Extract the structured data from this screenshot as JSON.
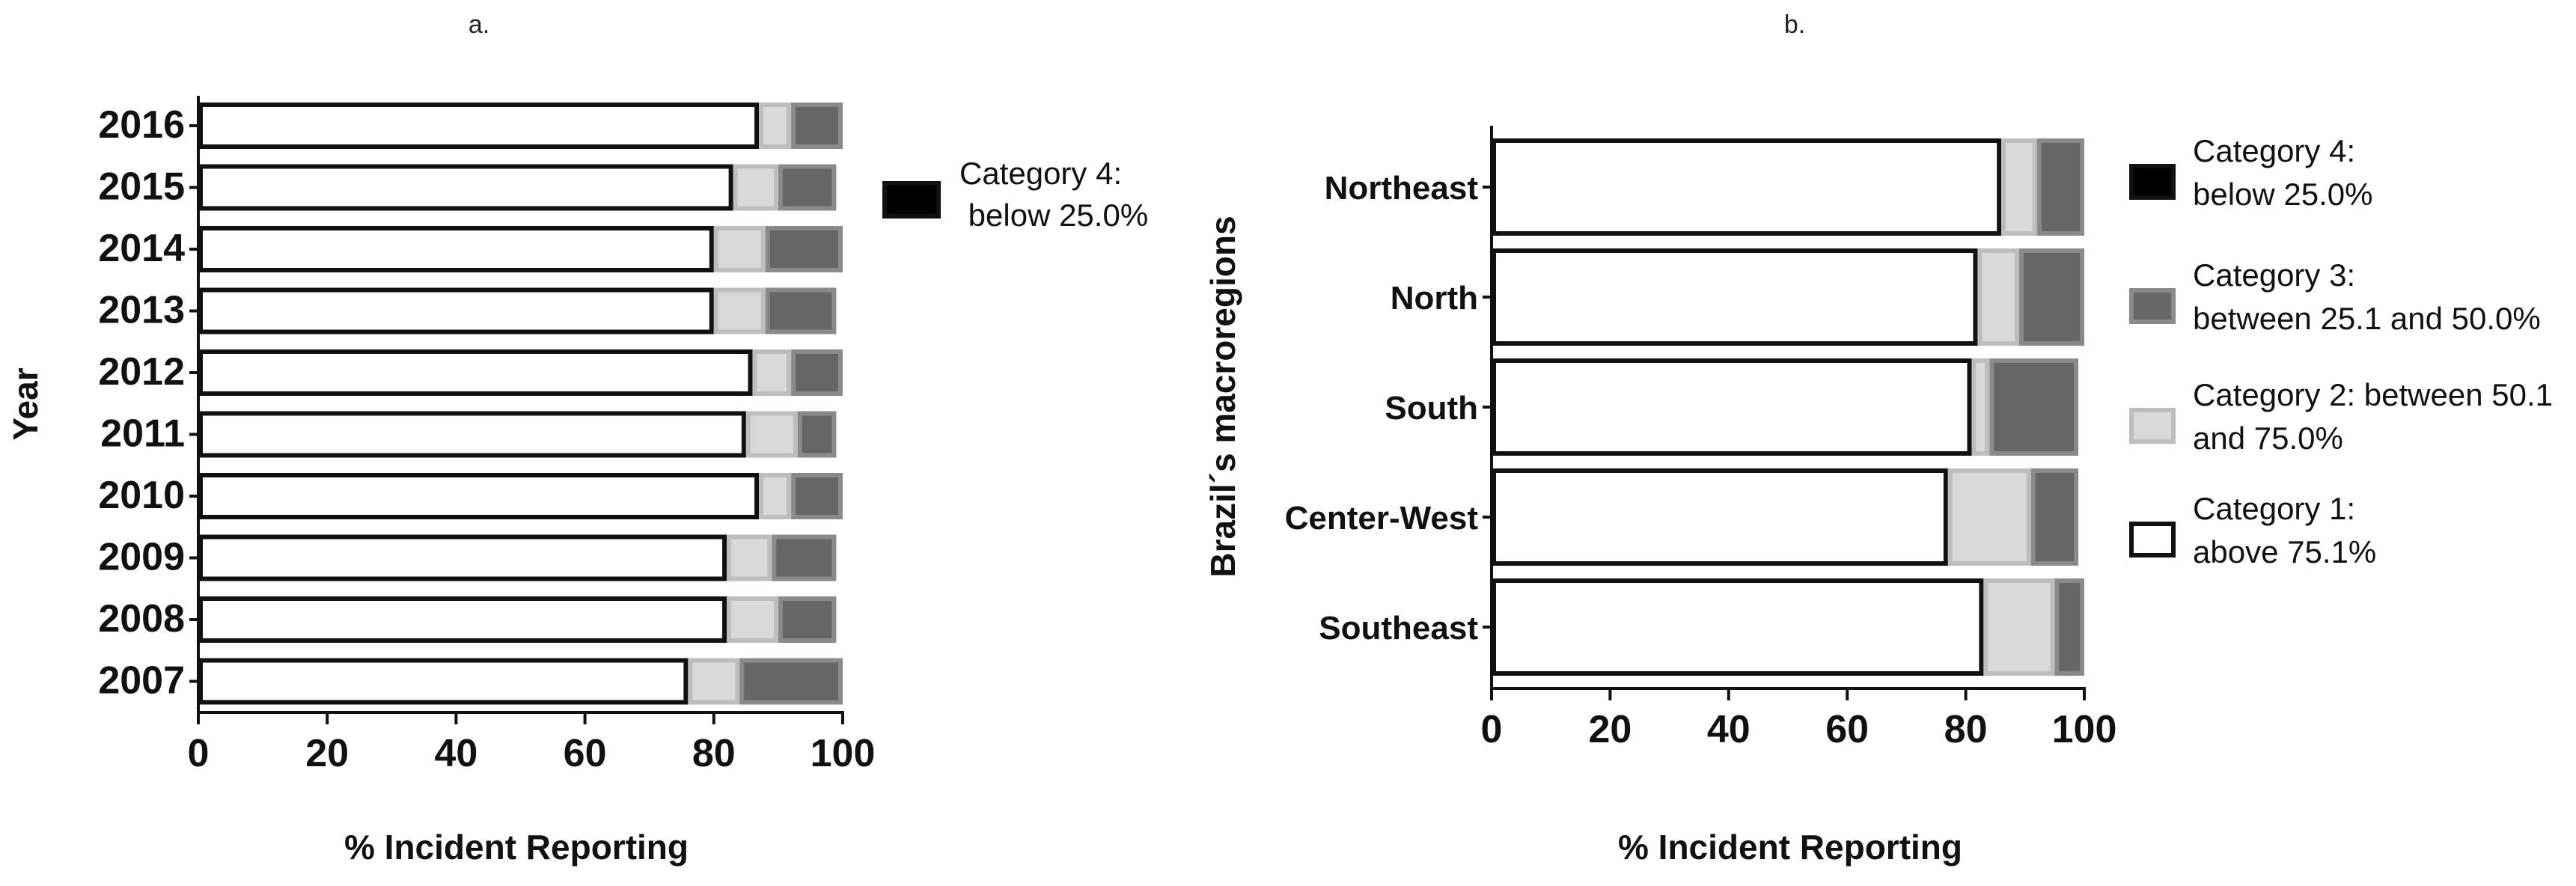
{
  "colors": {
    "category_1": "#ffffff",
    "category_2": "#d9d9d9",
    "category_3": "#666666",
    "category_4": "#000000",
    "outline": "#111111",
    "axis": "#111111"
  },
  "legend_b": {
    "items": [
      {
        "key": "category_4",
        "lines": [
          "Category 4:",
          " below 25.0%"
        ]
      },
      {
        "key": "category_3",
        "lines": [
          "Category 3:",
          " between 25.1 and 50.0%"
        ]
      },
      {
        "key": "category_2",
        "lines": [
          "Category 2: between 50.1",
          "and 75.0%"
        ]
      },
      {
        "key": "category_1",
        "lines": [
          "Category 1:",
          " above 75.1%"
        ]
      }
    ]
  },
  "chart_data": [
    {
      "panel": "a.",
      "type": "bar",
      "orientation": "horizontal",
      "stacked": true,
      "xlabel": "% Incident Reporting",
      "ylabel": "Year",
      "xlim": [
        0,
        100
      ],
      "xticks": [
        0,
        20,
        40,
        60,
        80,
        100
      ],
      "categories": [
        "2016",
        "2015",
        "2014",
        "2013",
        "2012",
        "2011",
        "2010",
        "2009",
        "2008",
        "2007"
      ],
      "series": [
        {
          "name": "Category 1: above 75.1%",
          "values": [
            87,
            83,
            80,
            80,
            86,
            85,
            87,
            82,
            82,
            76
          ]
        },
        {
          "name": "Category 2: between 50.1 and 75.0%",
          "values": [
            5,
            7,
            8,
            8,
            6,
            8,
            5,
            7,
            8,
            8
          ]
        },
        {
          "name": "Category 3: between 25.1 and 50.0%",
          "values": [
            8,
            9,
            12,
            11,
            8,
            6,
            8,
            10,
            9,
            16
          ]
        },
        {
          "name": "Category 4: below 25.0%",
          "values": [
            0,
            0,
            0,
            0,
            0,
            0,
            0,
            0,
            0,
            0
          ]
        }
      ],
      "legend": {
        "position": "right",
        "entries": [
          "Category 4:",
          " below 25.0%"
        ]
      }
    },
    {
      "panel": "b.",
      "type": "bar",
      "orientation": "horizontal",
      "stacked": true,
      "xlabel": "% Incident Reporting",
      "ylabel": "Brazil´s macroregions",
      "xlim": [
        0,
        100
      ],
      "xticks": [
        0,
        20,
        40,
        60,
        80,
        100
      ],
      "categories": [
        "Northeast",
        "North",
        "South",
        "Center-West",
        "Southeast"
      ],
      "series": [
        {
          "name": "Category 1: above 75.1%",
          "values": [
            86,
            82,
            81,
            77,
            83
          ]
        },
        {
          "name": "Category 2: between 50.1 and 75.0%",
          "values": [
            6,
            7,
            3,
            14,
            12
          ]
        },
        {
          "name": "Category 3: between 25.1 and 50.0%",
          "values": [
            8,
            11,
            15,
            8,
            5
          ]
        },
        {
          "name": "Category 4: below 25.0%",
          "values": [
            0,
            0,
            0,
            0,
            0
          ]
        }
      ],
      "legend": {
        "position": "right",
        "entries": [
          "Category 4:",
          "Category 3:",
          "Category 2: between 50.1",
          "Category 1:"
        ]
      }
    }
  ]
}
